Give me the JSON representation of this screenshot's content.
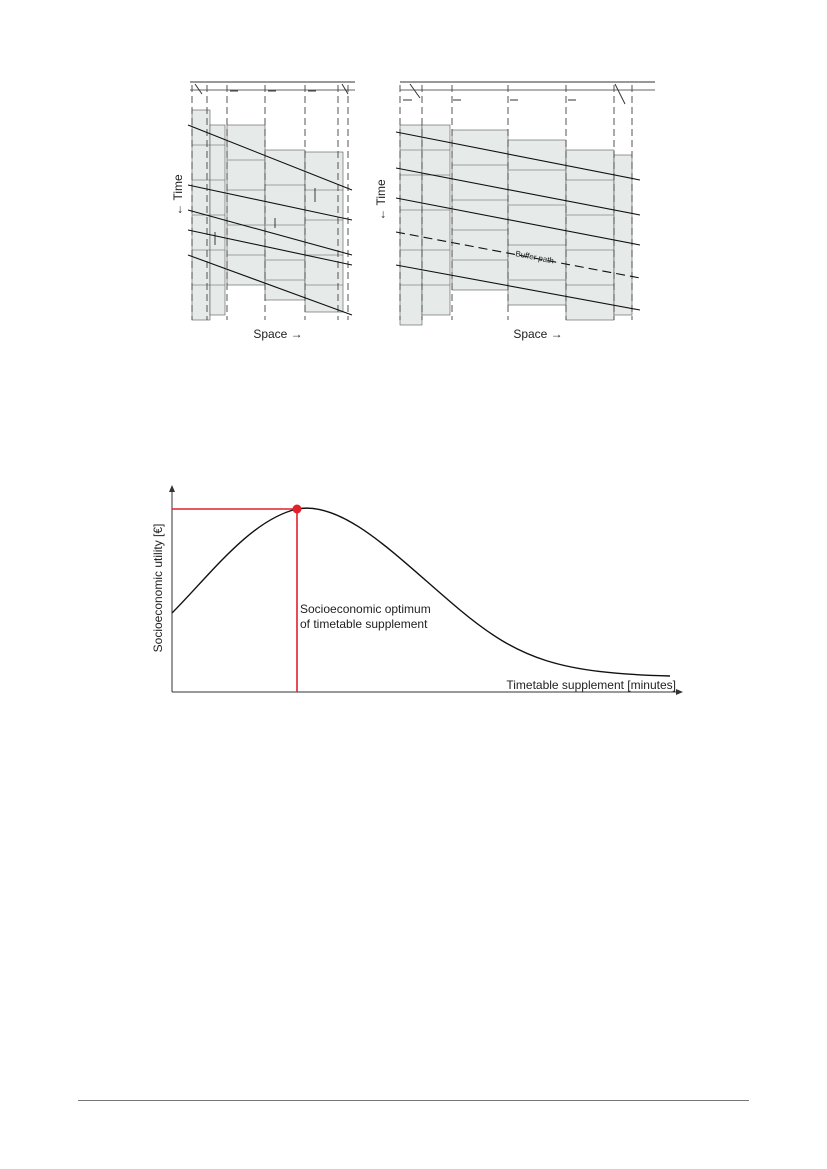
{
  "figure_top": {
    "left_panel": {
      "y_label": "← Time",
      "x_label": "Space →"
    },
    "right_panel": {
      "y_label": "← Time",
      "x_label": "Space →",
      "buffer_label": "Buffer path"
    }
  },
  "figure_bottom": {
    "y_label": "Socioeconomic utility [€]",
    "x_label": "Timetable supplement [minutes]",
    "annotation_line1": "Socioeconomic optimum",
    "annotation_line2": "of timetable supplement",
    "colors": {
      "curve": "#111111",
      "optimum": "#e0202a"
    }
  }
}
